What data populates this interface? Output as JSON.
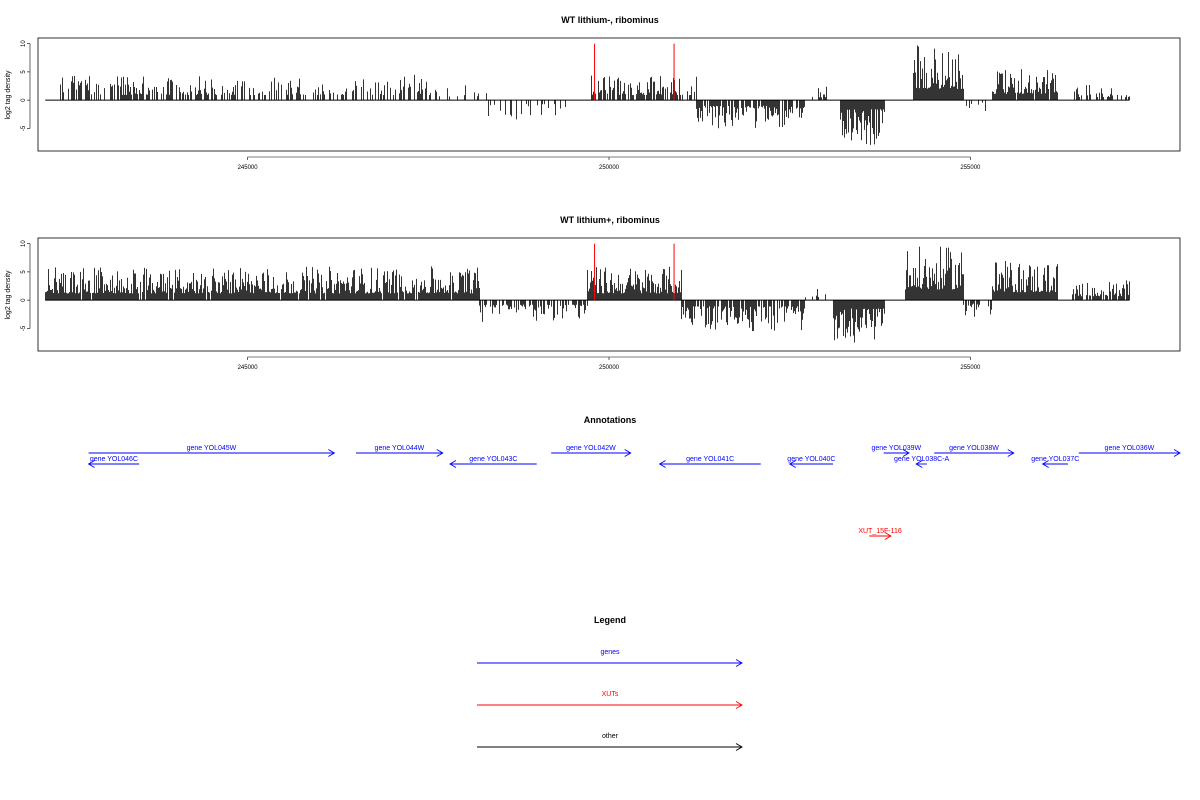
{
  "chart_data": [
    {
      "type": "bar",
      "title": "WT lithium-, ribominus",
      "ylabel": "log2 tag density",
      "xlabel": "",
      "xlim": [
        242100,
        257900
      ],
      "ylim": [
        -9,
        11
      ],
      "xticks": [
        245000,
        250000,
        255000
      ],
      "xtick_labels": [
        "245000",
        "250000",
        "255000"
      ],
      "yticks": [
        -5,
        0,
        5,
        10
      ],
      "ytick_labels": [
        "-5",
        "0",
        "5",
        "10"
      ],
      "baseline": {
        "from": 242200,
        "to": 257200,
        "value": 0
      },
      "markers": [
        {
          "x": 249800,
          "value": 10,
          "color": "#ff0000"
        },
        {
          "x": 250900,
          "value": 10,
          "color": "#ff0000"
        }
      ],
      "segments": [
        {
          "from": 242400,
          "to": 247600,
          "strand": "+",
          "density": 0.55,
          "max": 4.5
        },
        {
          "from": 247600,
          "to": 248300,
          "strand": "+",
          "density": 0.25,
          "max": 3.0
        },
        {
          "from": 248300,
          "to": 249500,
          "strand": "-",
          "density": 0.25,
          "max": 3.5
        },
        {
          "from": 249750,
          "to": 251200,
          "strand": "+",
          "density": 0.7,
          "max": 4.5
        },
        {
          "from": 251200,
          "to": 252700,
          "strand": "-",
          "density": 0.85,
          "max": 5.0
        },
        {
          "from": 252700,
          "to": 253000,
          "strand": "+",
          "density": 0.3,
          "max": 2.5
        },
        {
          "from": 253200,
          "to": 253800,
          "strand": "-",
          "density": 1.0,
          "max": 8.0
        },
        {
          "from": 254200,
          "to": 254900,
          "strand": "+",
          "density": 1.0,
          "max": 10.0
        },
        {
          "from": 254900,
          "to": 255200,
          "strand": "-",
          "density": 0.2,
          "max": 2.0
        },
        {
          "from": 255300,
          "to": 256200,
          "strand": "+",
          "density": 0.95,
          "max": 5.5
        },
        {
          "from": 256400,
          "to": 257200,
          "strand": "+",
          "density": 0.4,
          "max": 2.8
        }
      ]
    },
    {
      "type": "bar",
      "title": "WT lithium+, ribominus",
      "ylabel": "log2 tag density",
      "xlabel": "",
      "xlim": [
        242100,
        257900
      ],
      "ylim": [
        -9,
        11
      ],
      "xticks": [
        245000,
        250000,
        255000
      ],
      "xtick_labels": [
        "245000",
        "250000",
        "255000"
      ],
      "yticks": [
        -5,
        0,
        5,
        10
      ],
      "ytick_labels": [
        "-5",
        "0",
        "5",
        "10"
      ],
      "baseline": {
        "from": 242200,
        "to": 257200,
        "value": 0
      },
      "markers": [
        {
          "x": 249800,
          "value": 10,
          "color": "#ff0000"
        },
        {
          "x": 250900,
          "value": 10,
          "color": "#ff0000"
        }
      ],
      "segments": [
        {
          "from": 242200,
          "to": 248200,
          "strand": "+",
          "density": 0.95,
          "max": 6.0
        },
        {
          "from": 248200,
          "to": 249700,
          "strand": "-",
          "density": 0.6,
          "max": 4.0
        },
        {
          "from": 249700,
          "to": 251000,
          "strand": "+",
          "density": 1.0,
          "max": 6.0
        },
        {
          "from": 251000,
          "to": 252700,
          "strand": "-",
          "density": 0.8,
          "max": 5.5
        },
        {
          "from": 252700,
          "to": 253000,
          "strand": "+",
          "density": 0.3,
          "max": 2.5
        },
        {
          "from": 253100,
          "to": 253800,
          "strand": "-",
          "density": 1.0,
          "max": 7.5
        },
        {
          "from": 254100,
          "to": 254900,
          "strand": "+",
          "density": 1.0,
          "max": 9.5
        },
        {
          "from": 254900,
          "to": 255300,
          "strand": "-",
          "density": 0.5,
          "max": 3.0
        },
        {
          "from": 255300,
          "to": 256200,
          "strand": "+",
          "density": 1.0,
          "max": 7.0
        },
        {
          "from": 256400,
          "to": 257200,
          "strand": "+",
          "density": 0.8,
          "max": 3.5
        }
      ]
    }
  ],
  "annotations": {
    "title": "Annotations",
    "genes": [
      {
        "label": "gene YOL046C",
        "from": 242800,
        "to": 243500,
        "strand": "-",
        "row": 1,
        "color": "#0000ff"
      },
      {
        "label": "gene YOL045W",
        "from": 242800,
        "to": 246200,
        "strand": "+",
        "row": 0,
        "color": "#0000ff"
      },
      {
        "label": "gene YOL044W",
        "from": 246500,
        "to": 247700,
        "strand": "+",
        "row": 0,
        "color": "#0000ff"
      },
      {
        "label": "gene YOL043C",
        "from": 247800,
        "to": 249000,
        "strand": "-",
        "row": 1,
        "color": "#0000ff"
      },
      {
        "label": "gene YOL042W",
        "from": 249200,
        "to": 250300,
        "strand": "+",
        "row": 0,
        "color": "#0000ff"
      },
      {
        "label": "gene YOL041C",
        "from": 250700,
        "to": 252100,
        "strand": "-",
        "row": 1,
        "color": "#0000ff"
      },
      {
        "label": "gene YOL040C",
        "from": 252500,
        "to": 253100,
        "strand": "-",
        "row": 1,
        "color": "#0000ff"
      },
      {
        "label": "gene YOL039W",
        "from": 253800,
        "to": 254150,
        "strand": "+",
        "row": 0,
        "color": "#0000ff"
      },
      {
        "label": "gene YOL038C-A",
        "from": 254250,
        "to": 254400,
        "strand": "-",
        "row": 1,
        "color": "#0000ff"
      },
      {
        "label": "gene YOL038W",
        "from": 254500,
        "to": 255600,
        "strand": "+",
        "row": 0,
        "color": "#0000ff"
      },
      {
        "label": "gene YOL037C",
        "from": 256000,
        "to": 256350,
        "strand": "-",
        "row": 1,
        "color": "#0000ff"
      },
      {
        "label": "gene YOL036W",
        "from": 256500,
        "to": 257900,
        "strand": "+",
        "row": 0,
        "color": "#0000ff"
      }
    ],
    "xuts": [
      {
        "label": "XUT_15F-116",
        "from": 253600,
        "to": 253900,
        "strand": "+",
        "color": "#ff0000"
      }
    ]
  },
  "legend": {
    "title": "Legend",
    "items": [
      {
        "label": "genes",
        "color": "#0000ff"
      },
      {
        "label": "XUTs",
        "color": "#ff0000"
      },
      {
        "label": "other",
        "color": "#000000"
      }
    ]
  }
}
